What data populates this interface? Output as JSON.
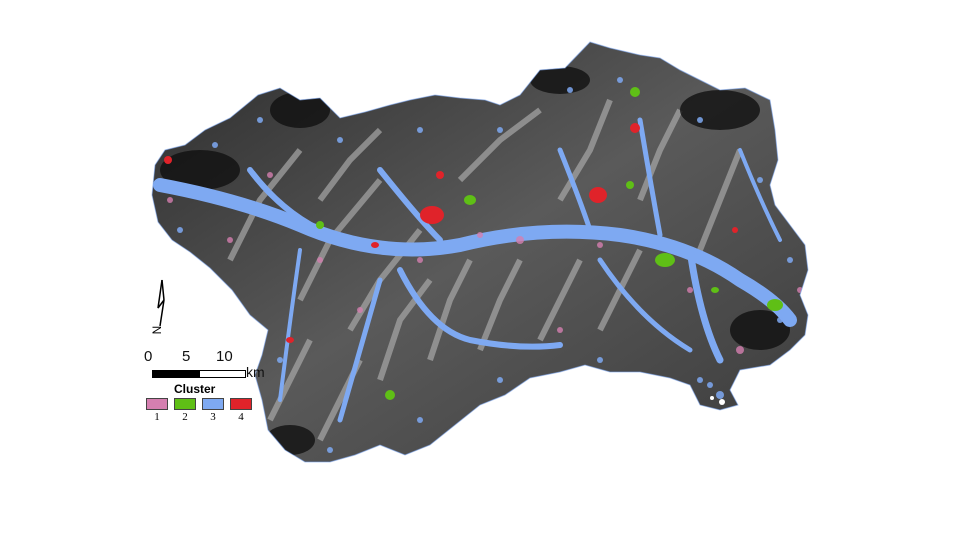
{
  "map": {
    "legend": {
      "title": "Cluster",
      "items": [
        {
          "label": "1",
          "color": "#d57fb0"
        },
        {
          "label": "2",
          "color": "#5fbf16"
        },
        {
          "label": "3",
          "color": "#7ea9f2"
        },
        {
          "label": "4",
          "color": "#e0232a"
        }
      ]
    },
    "scale_bar": {
      "labels": [
        "0",
        "5",
        "10"
      ],
      "unit": "km"
    },
    "north_arrow": {
      "label": "N"
    },
    "colors": {
      "terrain_dark": "#1a1a1a",
      "terrain_light": "#8c8c8c",
      "valley": "#7ea9f2"
    }
  }
}
